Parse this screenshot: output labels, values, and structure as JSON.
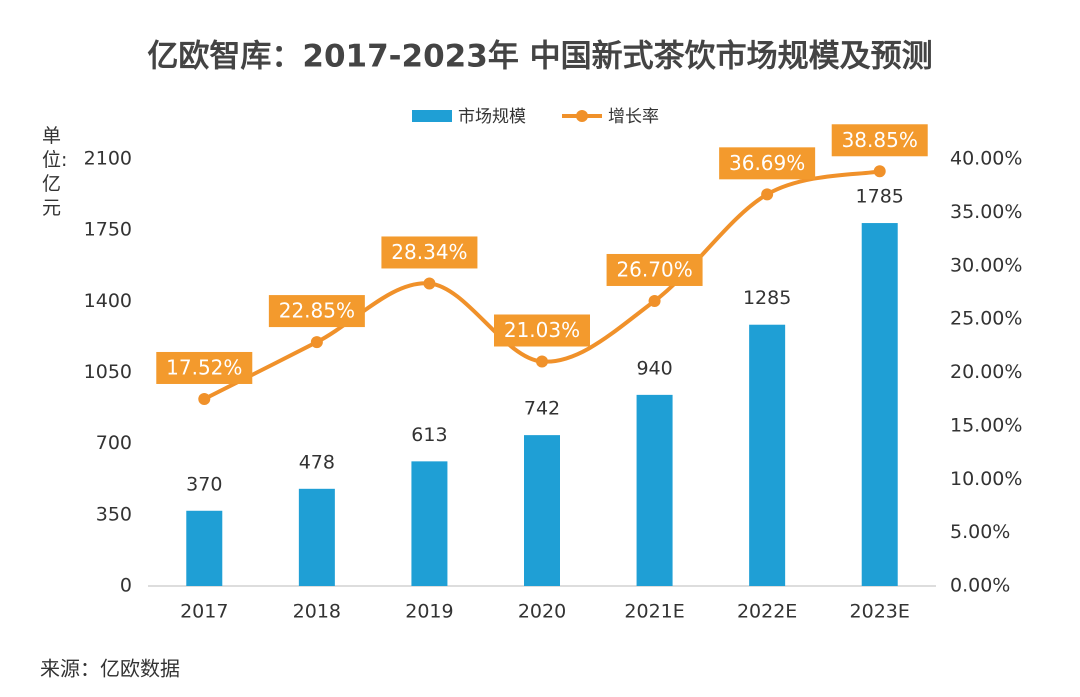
{
  "chart_data": {
    "type": "bar",
    "title": "亿欧智库：2017-2023年 中国新式茶饮市场规模及预测",
    "y_label": "单位:亿元",
    "source": "来源：亿欧数据",
    "categories": [
      "2017",
      "2018",
      "2019",
      "2020",
      "2021E",
      "2022E",
      "2023E"
    ],
    "series": [
      {
        "name": "市场规模",
        "type": "bar",
        "color": "#1f9fd5",
        "values": [
          370,
          478,
          613,
          742,
          940,
          1285,
          1785
        ]
      },
      {
        "name": "增长率",
        "type": "line",
        "axis": "y2",
        "color": "#f0912a",
        "label_color": "#f39a2d",
        "values": [
          17.52,
          22.85,
          28.34,
          21.03,
          26.7,
          36.69,
          38.85
        ],
        "value_labels": [
          "17.52%",
          "22.85%",
          "28.34%",
          "21.03%",
          "26.70%",
          "36.69%",
          "38.85%"
        ]
      }
    ],
    "ylim": [
      0,
      2100
    ],
    "yticks": [
      0,
      350,
      700,
      1050,
      1400,
      1750,
      2100
    ],
    "y2lim": [
      0,
      40
    ],
    "y2ticks": [
      {
        "value": 0,
        "label": "0.00%"
      },
      {
        "value": 5,
        "label": "5.00%"
      },
      {
        "value": 10,
        "label": "10.00%"
      },
      {
        "value": 15,
        "label": "15.00%"
      },
      {
        "value": 20,
        "label": "20.00%"
      },
      {
        "value": 25,
        "label": "25.00%"
      },
      {
        "value": 30,
        "label": "30.00%"
      },
      {
        "value": 35,
        "label": "35.00%"
      },
      {
        "value": 40,
        "label": "40.00%"
      }
    ],
    "legend": "top",
    "grid": false
  }
}
